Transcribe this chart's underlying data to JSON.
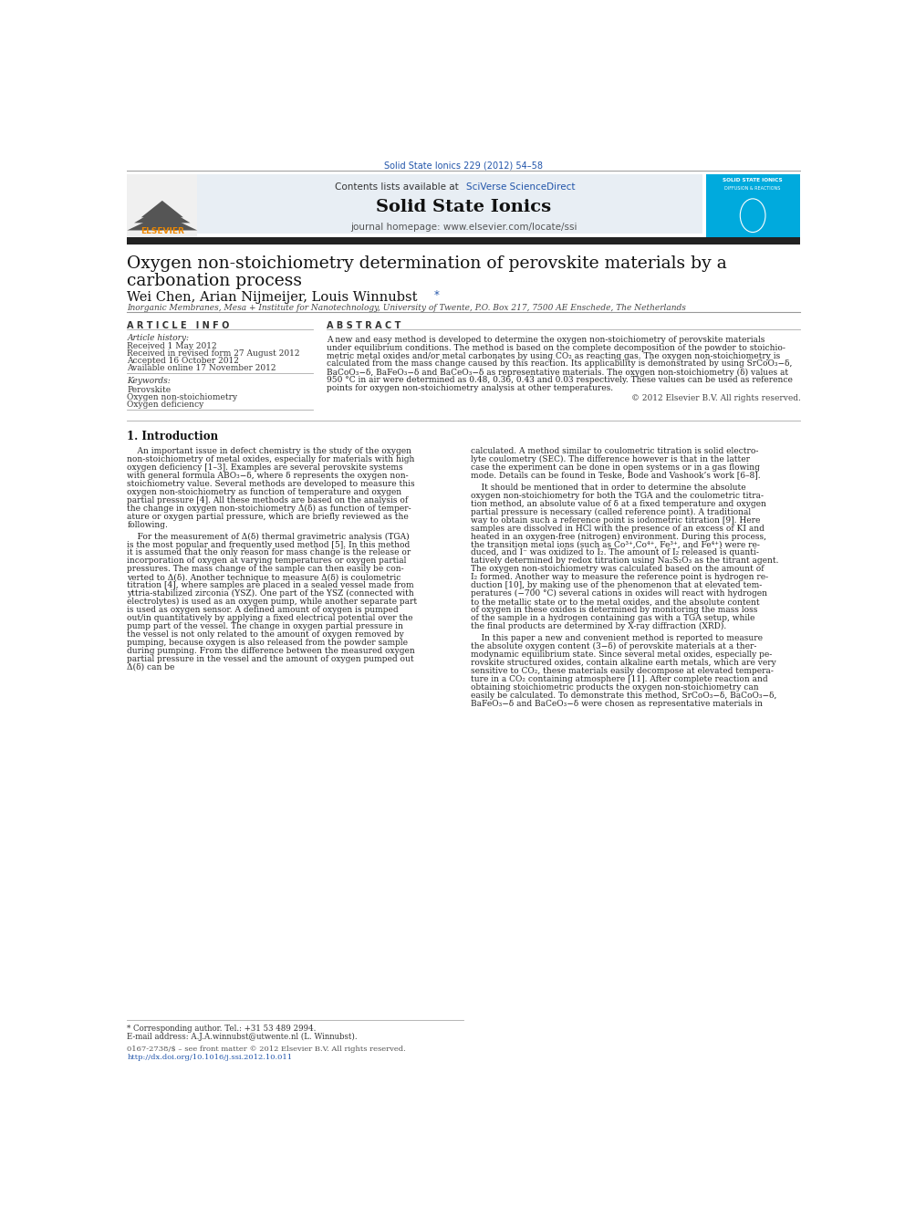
{
  "page_width": 9.92,
  "page_height": 13.23,
  "bg_color": "#ffffff",
  "journal_ref": "Solid State Ionics 229 (2012) 54–58",
  "journal_ref_color": "#2255aa",
  "header_bg": "#e8eef4",
  "header_text1": "Contents lists available at ",
  "header_link1": "SciVerse ScienceDirect",
  "header_link_color": "#2255aa",
  "journal_name": "Solid State Ionics",
  "journal_homepage": "journal homepage: www.elsevier.com/locate/ssi",
  "sidebar_bg": "#00aadd",
  "article_info_header": "A R T I C L E   I N F O",
  "abstract_header": "A B S T R A C T",
  "article_history_label": "Article history:",
  "received": "Received 1 May 2012",
  "revised": "Received in revised form 27 August 2012",
  "accepted": "Accepted 16 October 2012",
  "available": "Available online 17 November 2012",
  "keywords_label": "Keywords:",
  "keyword1": "Perovskite",
  "keyword2": "Oxygen non-stoichiometry",
  "keyword3": "Oxygen deficiency",
  "copyright": "© 2012 Elsevier B.V. All rights reserved.",
  "footnote_star": "* Corresponding author. Tel.: +31 53 489 2994.",
  "footnote_email": "E-mail address: A.J.A.winnubst@utwente.nl (L. Winnubst).",
  "footer_issn": "0167-2738/$ – see front matter © 2012 Elsevier B.V. All rights reserved.",
  "footer_doi": "http://dx.doi.org/10.1016/j.ssi.2012.10.011",
  "affiliation": "Inorganic Membranes, Mesa + Institute for Nanotechnology, University of Twente, P.O. Box 217, 7500 AE Enschede, The Netherlands",
  "abstract_lines": [
    "A new and easy method is developed to determine the oxygen non-stoichiometry of perovskite materials",
    "under equilibrium conditions. The method is based on the complete decomposition of the powder to stoichio-",
    "metric metal oxides and/or metal carbonates by using CO₂ as reacting gas. The oxygen non-stoichiometry is",
    "calculated from the mass change caused by this reaction. Its applicability is demonstrated by using SrCoO₃−δ,",
    "BaCoO₃−δ, BaFeO₃−δ and BaCeO₃−δ as representative materials. The oxygen non-stoichiometry (δ) values at",
    "950 °C in air were determined as 0.48, 0.36, 0.43 and 0.03 respectively. These values can be used as reference",
    "points for oxygen non-stoichiometry analysis at other temperatures."
  ],
  "left_col1": [
    "    An important issue in defect chemistry is the study of the oxygen",
    "non-stoichiometry of metal oxides, especially for materials with high",
    "oxygen deficiency [1–3]. Examples are several perovskite systems",
    "with general formula ABO₃−δ, where δ represents the oxygen non-",
    "stoichiometry value. Several methods are developed to measure this",
    "oxygen non-stoichiometry as function of temperature and oxygen",
    "partial pressure [4]. All these methods are based on the analysis of",
    "the change in oxygen non-stoichiometry Δ(δ) as function of temper-",
    "ature or oxygen partial pressure, which are briefly reviewed as the",
    "following."
  ],
  "left_col2": [
    "    For the measurement of Δ(δ) thermal gravimetric analysis (TGA)",
    "is the most popular and frequently used method [5]. In this method",
    "it is assumed that the only reason for mass change is the release or",
    "incorporation of oxygen at varying temperatures or oxygen partial",
    "pressures. The mass change of the sample can then easily be con-",
    "verted to Δ(δ). Another technique to measure Δ(δ) is coulometric",
    "titration [4], where samples are placed in a sealed vessel made from",
    "yttria-stabilized zirconia (YSZ). One part of the YSZ (connected with",
    "electrolytes) is used as an oxygen pump, while another separate part",
    "is used as oxygen sensor. A defined amount of oxygen is pumped",
    "out/in quantitatively by applying a fixed electrical potential over the",
    "pump part of the vessel. The change in oxygen partial pressure in",
    "the vessel is not only related to the amount of oxygen removed by",
    "pumping, because oxygen is also released from the powder sample",
    "during pumping. From the difference between the measured oxygen",
    "partial pressure in the vessel and the amount of oxygen pumped out",
    "Δ(δ) can be"
  ],
  "right_col1": [
    "calculated. A method similar to coulometric titration is solid electro-",
    "lyte coulometry (SEC). The difference however is that in the latter",
    "case the experiment can be done in open systems or in a gas flowing",
    "mode. Details can be found in Teske, Bode and Vashook’s work [6–8]."
  ],
  "right_col2": [
    "    It should be mentioned that in order to determine the absolute",
    "oxygen non-stoichiometry for both the TGA and the coulometric titra-",
    "tion method, an absolute value of δ at a fixed temperature and oxygen",
    "partial pressure is necessary (called reference point). A traditional",
    "way to obtain such a reference point is iodometric titration [9]. Here",
    "samples are dissolved in HCl with the presence of an excess of KI and",
    "heated in an oxygen-free (nitrogen) environment. During this process,",
    "the transition metal ions (such as Co³⁺,Co⁴⁺, Fe³⁺, and Fe⁴⁺) were re-",
    "duced, and I⁻ was oxidized to I₂. The amount of I₂ released is quanti-",
    "tatively determined by redox titration using Na₂S₂O₃ as the titrant agent.",
    "The oxygen non-stoichiometry was calculated based on the amount of",
    "I₂ formed. Another way to measure the reference point is hydrogen re-",
    "duction [10], by making use of the phenomenon that at elevated tem-",
    "peratures (−700 °C) several cations in oxides will react with hydrogen",
    "to the metallic state or to the metal oxides, and the absolute content",
    "of oxygen in these oxides is determined by monitoring the mass loss",
    "of the sample in a hydrogen containing gas with a TGA setup, while",
    "the final products are determined by X-ray diffraction (XRD)."
  ],
  "right_col3": [
    "    In this paper a new and convenient method is reported to measure",
    "the absolute oxygen content (3−δ) of perovskite materials at a ther-",
    "modynamic equilibrium state. Since several metal oxides, especially pe-",
    "rovskite structured oxides, contain alkaline earth metals, which are very",
    "sensitive to CO₂, these materials easily decompose at elevated tempera-",
    "ture in a CO₂ containing atmosphere [11]. After complete reaction and",
    "obtaining stoichiometric products the oxygen non-stoichiometry can",
    "easily be calculated. To demonstrate this method, SrCoO₃−δ, BaCoO₃−δ,",
    "BaFeO₃−δ and BaCeO₃−δ were chosen as representative materials in"
  ]
}
